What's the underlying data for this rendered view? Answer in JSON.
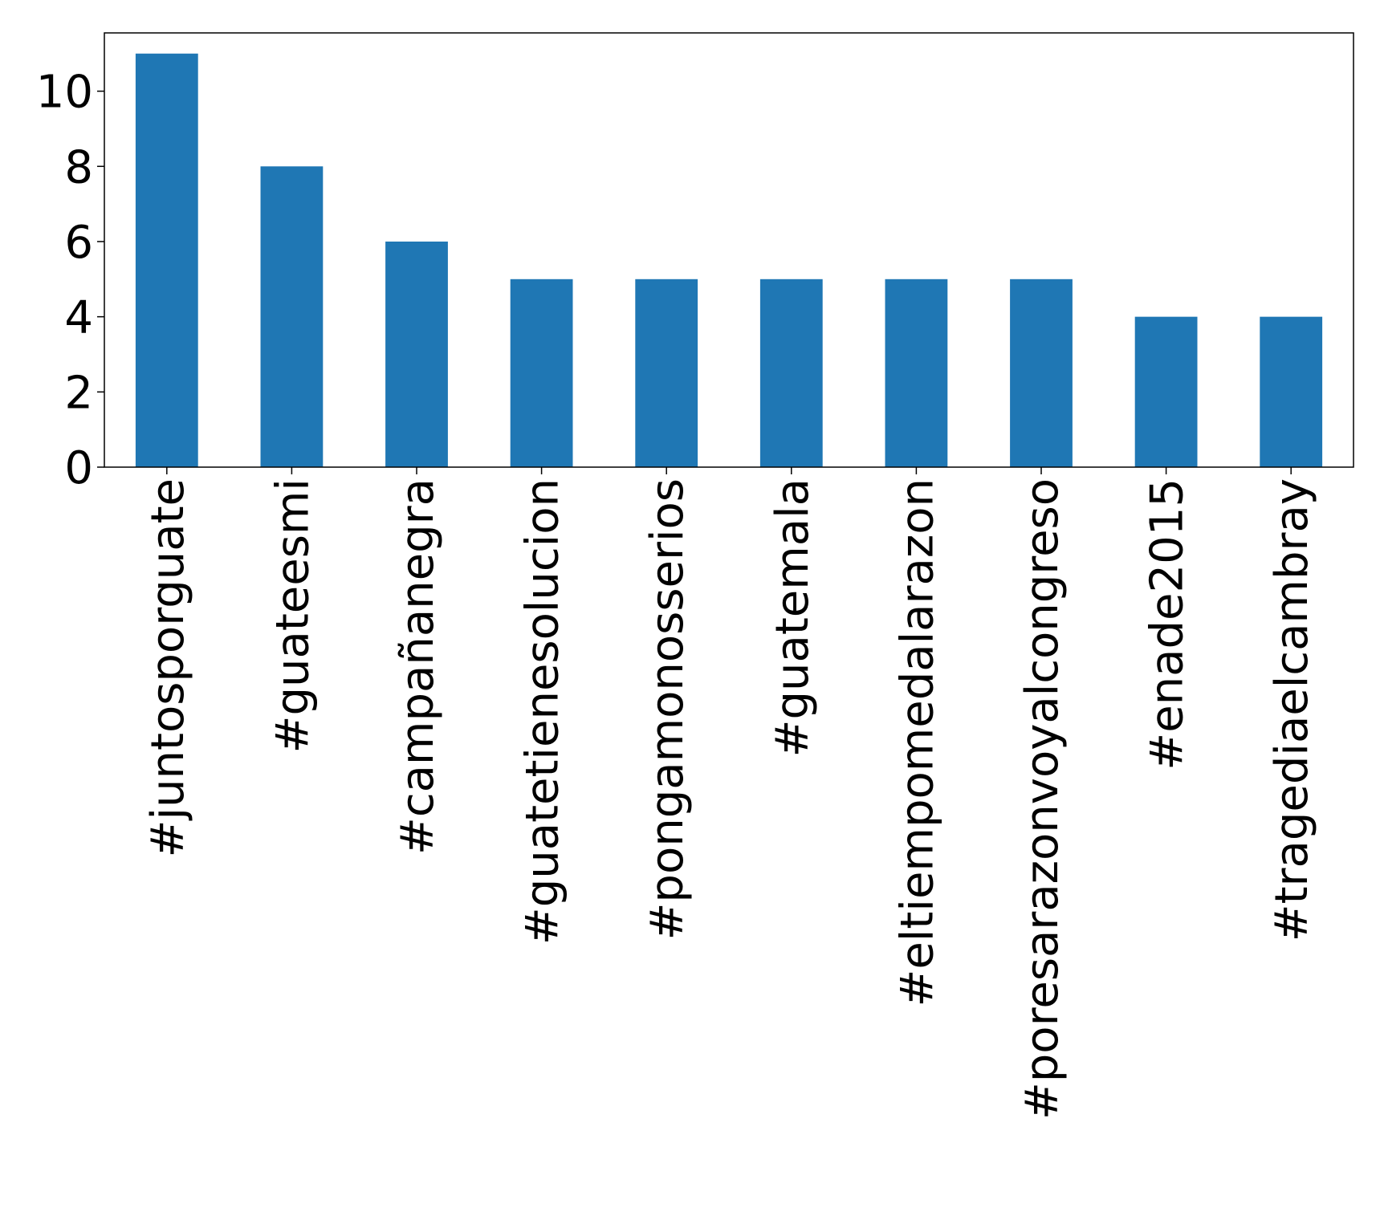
{
  "chart_data": {
    "type": "bar",
    "title": "",
    "xlabel": "",
    "ylabel": "",
    "categories": [
      "#juntosporguate",
      "#guateesmi",
      "#campañanegra",
      "#guatetienesolucion",
      "#pongamonosserios",
      "#guatemala",
      "#eltiempomedalarazon",
      "#poresarazonvoyalcongreso",
      "#enade2015",
      "#tragediaelcambray"
    ],
    "values": [
      11,
      8,
      6,
      5,
      5,
      5,
      5,
      5,
      4,
      4
    ],
    "yticks": [
      "0",
      "2",
      "4",
      "6",
      "8",
      "10"
    ],
    "ylim": [
      0,
      11.55
    ],
    "grid": false,
    "legend": "none",
    "bar_color": "#1f77b4"
  }
}
